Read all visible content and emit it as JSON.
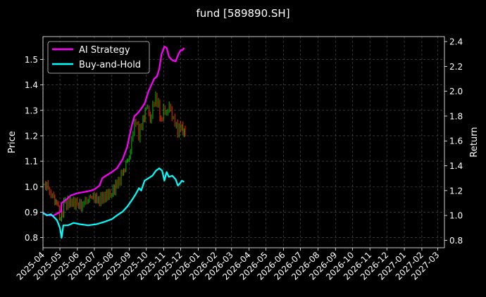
{
  "chart_data": {
    "type": "line",
    "title": "fund [589890.SH]",
    "ylabel_left": "Price",
    "ylabel_right": "Return",
    "ylim_left": [
      0.76,
      1.59
    ],
    "ylim_right": [
      0.74,
      2.44
    ],
    "xlim": [
      "2025-04-01",
      "2027-03-13"
    ],
    "grid": true,
    "legend_position": "top-left",
    "left_ticks": [
      "0.8",
      "0.9",
      "1.0",
      "1.1",
      "1.2",
      "1.3",
      "1.4",
      "1.5"
    ],
    "right_ticks": [
      "0.8",
      "1.0",
      "1.2",
      "1.4",
      "1.6",
      "1.8",
      "2.0",
      "2.2",
      "2.4"
    ],
    "x_ticks": [
      "2025-04",
      "2025-05",
      "2025-06",
      "2025-07",
      "2025-08",
      "2025-09",
      "2025-10",
      "2025-11",
      "2025-12",
      "2026-01",
      "2026-02",
      "2026-03",
      "2026-04",
      "2026-05",
      "2026-06",
      "2026-07",
      "2026-08",
      "2026-09",
      "2026-10",
      "2026-11",
      "2026-12",
      "2027-01",
      "2027-02",
      "2027-03"
    ],
    "series": [
      {
        "name": "AI Strategy",
        "axis": "right",
        "color": "#ff00ff",
        "points": [
          [
            "2025-04-01",
            1.02
          ],
          [
            "2025-04-06",
            1.01
          ],
          [
            "2025-04-12",
            1.0
          ],
          [
            "2025-04-20",
            1.0
          ],
          [
            "2025-04-28",
            1.02
          ],
          [
            "2025-05-03",
            1.03
          ],
          [
            "2025-05-04",
            1.1
          ],
          [
            "2025-05-10",
            1.12
          ],
          [
            "2025-05-20",
            1.16
          ],
          [
            "2025-06-01",
            1.18
          ],
          [
            "2025-06-15",
            1.19
          ],
          [
            "2025-06-25",
            1.2
          ],
          [
            "2025-07-01",
            1.21
          ],
          [
            "2025-07-10",
            1.24
          ],
          [
            "2025-07-15",
            1.3
          ],
          [
            "2025-07-25",
            1.33
          ],
          [
            "2025-08-01",
            1.35
          ],
          [
            "2025-08-10",
            1.38
          ],
          [
            "2025-08-20",
            1.45
          ],
          [
            "2025-08-28",
            1.55
          ],
          [
            "2025-09-05",
            1.72
          ],
          [
            "2025-09-10",
            1.8
          ],
          [
            "2025-09-15",
            1.82
          ],
          [
            "2025-09-22",
            1.86
          ],
          [
            "2025-09-28",
            1.9
          ],
          [
            "2025-10-05",
            2.0
          ],
          [
            "2025-10-10",
            2.05
          ],
          [
            "2025-10-15",
            2.1
          ],
          [
            "2025-10-20",
            2.12
          ],
          [
            "2025-10-24",
            2.18
          ],
          [
            "2025-10-28",
            2.3
          ],
          [
            "2025-11-02",
            2.36
          ],
          [
            "2025-11-06",
            2.35
          ],
          [
            "2025-11-10",
            2.28
          ],
          [
            "2025-11-16",
            2.25
          ],
          [
            "2025-11-22",
            2.24
          ],
          [
            "2025-11-27",
            2.3
          ],
          [
            "2025-12-01",
            2.33
          ],
          [
            "2025-12-04",
            2.33
          ],
          [
            "2025-12-07",
            2.35
          ]
        ]
      },
      {
        "name": "Buy-and-Hold",
        "axis": "right",
        "color": "#00ffff",
        "points": [
          [
            "2025-04-01",
            1.02
          ],
          [
            "2025-04-08",
            1.0
          ],
          [
            "2025-04-15",
            1.01
          ],
          [
            "2025-04-22",
            0.98
          ],
          [
            "2025-04-26",
            0.96
          ],
          [
            "2025-05-01",
            0.9
          ],
          [
            "2025-05-04",
            0.82
          ],
          [
            "2025-05-07",
            0.92
          ],
          [
            "2025-05-15",
            0.92
          ],
          [
            "2025-05-25",
            0.94
          ],
          [
            "2025-06-05",
            0.93
          ],
          [
            "2025-06-20",
            0.92
          ],
          [
            "2025-07-05",
            0.93
          ],
          [
            "2025-07-20",
            0.95
          ],
          [
            "2025-08-01",
            0.97
          ],
          [
            "2025-08-10",
            1.0
          ],
          [
            "2025-08-20",
            1.03
          ],
          [
            "2025-08-28",
            1.07
          ],
          [
            "2025-09-05",
            1.12
          ],
          [
            "2025-09-12",
            1.17
          ],
          [
            "2025-09-18",
            1.22
          ],
          [
            "2025-09-22",
            1.2
          ],
          [
            "2025-09-28",
            1.28
          ],
          [
            "2025-10-05",
            1.3
          ],
          [
            "2025-10-12",
            1.32
          ],
          [
            "2025-10-18",
            1.36
          ],
          [
            "2025-10-24",
            1.38
          ],
          [
            "2025-10-29",
            1.36
          ],
          [
            "2025-11-02",
            1.28
          ],
          [
            "2025-11-06",
            1.35
          ],
          [
            "2025-11-10",
            1.31
          ],
          [
            "2025-11-16",
            1.32
          ],
          [
            "2025-11-22",
            1.29
          ],
          [
            "2025-11-26",
            1.24
          ],
          [
            "2025-11-30",
            1.26
          ],
          [
            "2025-12-03",
            1.28
          ],
          [
            "2025-12-07",
            1.27
          ]
        ]
      },
      {
        "name": "",
        "axis": "left",
        "style": "candles",
        "up_color": "#00c000",
        "down_color": "#ff2a00",
        "points": [
          [
            "2025-04-01",
            1.01
          ],
          [
            "2025-04-10",
            1.0
          ],
          [
            "2025-04-20",
            0.96
          ],
          [
            "2025-04-28",
            0.93
          ],
          [
            "2025-05-04",
            0.86
          ],
          [
            "2025-05-10",
            0.93
          ],
          [
            "2025-05-20",
            0.94
          ],
          [
            "2025-06-01",
            0.93
          ],
          [
            "2025-06-10",
            0.93
          ],
          [
            "2025-06-20",
            0.95
          ],
          [
            "2025-07-01",
            0.96
          ],
          [
            "2025-07-10",
            0.95
          ],
          [
            "2025-07-20",
            0.96
          ],
          [
            "2025-08-01",
            0.97
          ],
          [
            "2025-08-10",
            1.0
          ],
          [
            "2025-08-20",
            1.04
          ],
          [
            "2025-08-28",
            1.08
          ],
          [
            "2025-09-05",
            1.13
          ],
          [
            "2025-09-10",
            1.22
          ],
          [
            "2025-09-15",
            1.26
          ],
          [
            "2025-09-20",
            1.2
          ],
          [
            "2025-09-25",
            1.25
          ],
          [
            "2025-10-01",
            1.29
          ],
          [
            "2025-10-06",
            1.32
          ],
          [
            "2025-10-10",
            1.26
          ],
          [
            "2025-10-15",
            1.32
          ],
          [
            "2025-10-20",
            1.35
          ],
          [
            "2025-10-25",
            1.32
          ],
          [
            "2025-10-29",
            1.25
          ],
          [
            "2025-11-03",
            1.3
          ],
          [
            "2025-11-08",
            1.28
          ],
          [
            "2025-11-13",
            1.32
          ],
          [
            "2025-11-18",
            1.27
          ],
          [
            "2025-11-23",
            1.25
          ],
          [
            "2025-11-28",
            1.22
          ],
          [
            "2025-12-03",
            1.24
          ],
          [
            "2025-12-07",
            1.22
          ]
        ]
      }
    ]
  }
}
